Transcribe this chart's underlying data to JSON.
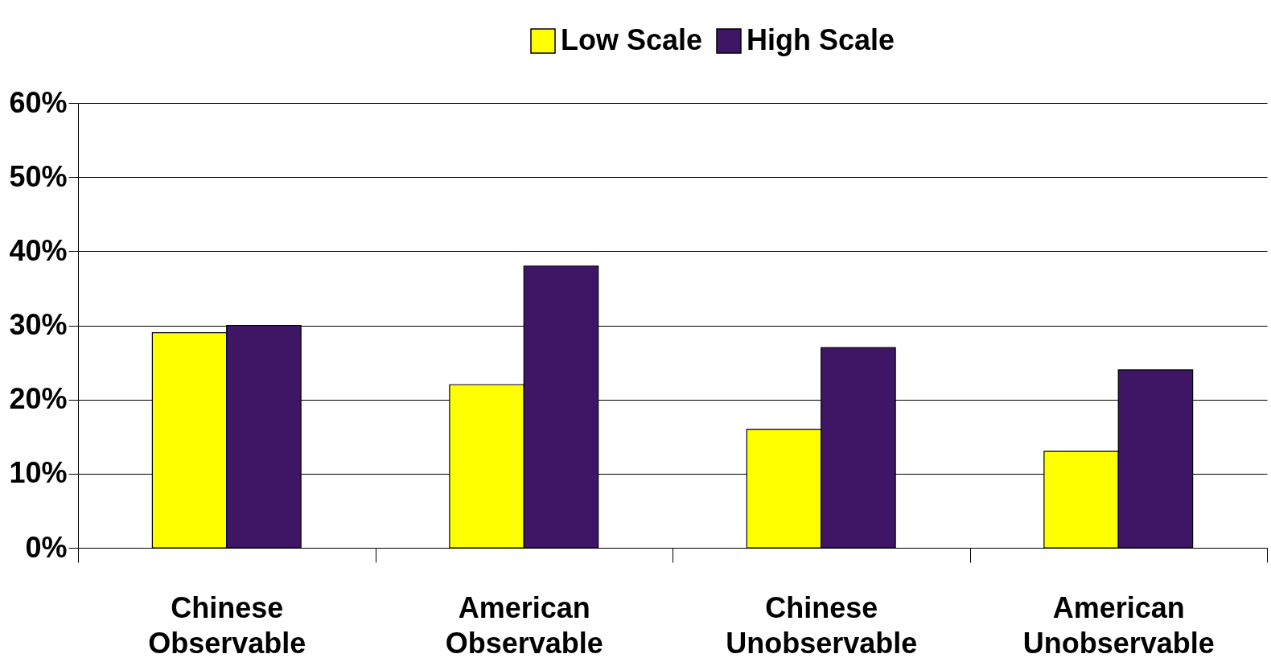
{
  "chart_data": {
    "type": "bar",
    "categories": [
      "Chinese Observable",
      "American Observable",
      "Chinese Unobservable",
      "American Unobservable"
    ],
    "series": [
      {
        "name": "Low Scale",
        "color": "#ffff00",
        "values": [
          29,
          22,
          16,
          13
        ]
      },
      {
        "name": "High Scale",
        "color": "#3f1566",
        "values": [
          30,
          38,
          27,
          24
        ]
      }
    ],
    "ylim": [
      0,
      60
    ],
    "yticks": [
      {
        "value": 0,
        "label": "0%"
      },
      {
        "value": 10,
        "label": "10%"
      },
      {
        "value": 20,
        "label": "20%"
      },
      {
        "value": 30,
        "label": "30%"
      },
      {
        "value": 40,
        "label": "40%"
      },
      {
        "value": 50,
        "label": "50%"
      },
      {
        "value": 60,
        "label": "60%"
      }
    ],
    "grid": "y",
    "legend": "top"
  }
}
